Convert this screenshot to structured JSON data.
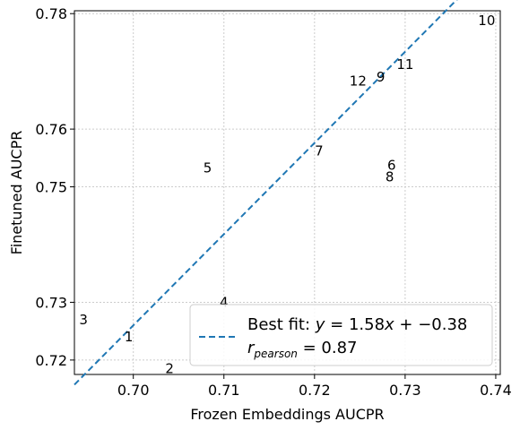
{
  "chart_data": {
    "type": "scatter",
    "xlabel": "Frozen Embeddings AUCPR",
    "ylabel": "Finetuned AUCPR",
    "xlim": [
      0.6935,
      0.7405
    ],
    "ylim": [
      0.7175,
      0.7805
    ],
    "x_ticks": [
      0.7,
      0.71,
      0.72,
      0.73,
      0.74
    ],
    "x_tick_labels": [
      "0.70",
      "0.71",
      "0.72",
      "0.73",
      "0.74"
    ],
    "y_ticks": [
      0.72,
      0.73,
      0.75,
      0.76,
      0.78
    ],
    "y_tick_labels": [
      "0.72",
      "0.73",
      "0.75",
      "0.76",
      "0.78"
    ],
    "grid": true,
    "points": [
      {
        "label": "1",
        "x": 0.6995,
        "y": 0.724
      },
      {
        "label": "2",
        "x": 0.704,
        "y": 0.7185
      },
      {
        "label": "3",
        "x": 0.6945,
        "y": 0.727
      },
      {
        "label": "4",
        "x": 0.71,
        "y": 0.73
      },
      {
        "label": "5",
        "x": 0.7082,
        "y": 0.7533
      },
      {
        "label": "6",
        "x": 0.7285,
        "y": 0.7537
      },
      {
        "label": "7",
        "x": 0.7205,
        "y": 0.7562
      },
      {
        "label": "8",
        "x": 0.7283,
        "y": 0.7517
      },
      {
        "label": "9",
        "x": 0.7273,
        "y": 0.769
      },
      {
        "label": "10",
        "x": 0.739,
        "y": 0.7788
      },
      {
        "label": "11",
        "x": 0.73,
        "y": 0.7712
      },
      {
        "label": "12",
        "x": 0.7248,
        "y": 0.7683
      }
    ],
    "fit_line": {
      "slope": 1.58,
      "intercept": -0.38,
      "color": "#1f77b4",
      "style": "dashed"
    },
    "legend": {
      "placement": "lower-right",
      "prefix": "Best fit: ",
      "formula_y": "y",
      "formula_eq": " = 1.58",
      "formula_x": "x",
      "formula_rest": " + −0.38",
      "r_symbol": "r",
      "r_sub": "pearson",
      "r_value": " = 0.87"
    }
  }
}
